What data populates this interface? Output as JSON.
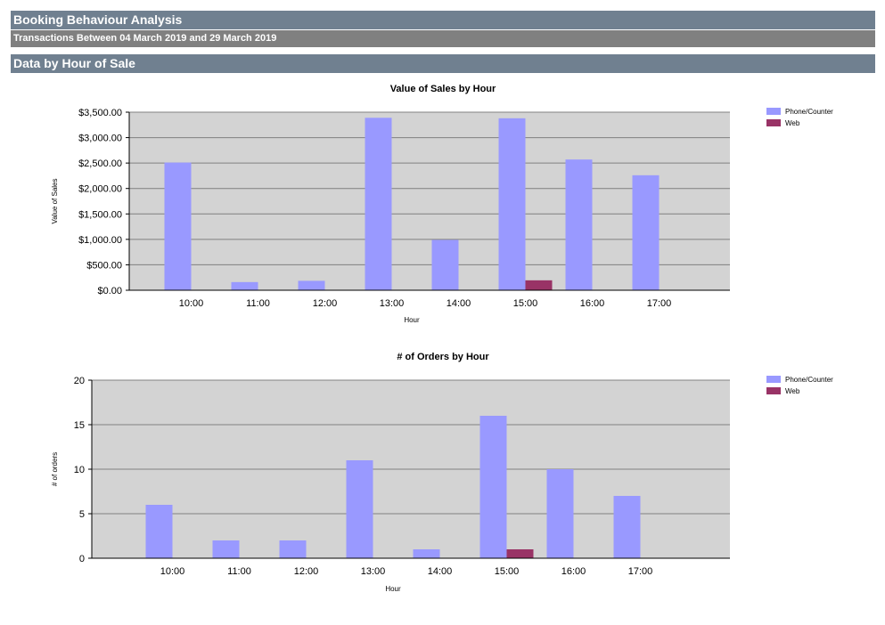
{
  "header": {
    "title": "Booking Behaviour Analysis",
    "subtitle": "Transactions Between 04 March 2019 and 29 March 2019",
    "section": "Data by Hour of Sale"
  },
  "colors": {
    "phone_counter": "#9999ff",
    "web": "#993366",
    "plot_bg": "#d3d3d3",
    "header_bg": "#708090",
    "subheader_bg": "#808080"
  },
  "chart_data": [
    {
      "type": "bar",
      "title": "Value of Sales by Hour",
      "xlabel": "Hour",
      "ylabel": "Value of Sales",
      "categories": [
        "10:00",
        "11:00",
        "12:00",
        "13:00",
        "14:00",
        "15:00",
        "16:00",
        "17:00"
      ],
      "series": [
        {
          "name": "Phone/Counter",
          "values": [
            2510,
            160,
            185,
            3390,
            990,
            3380,
            2570,
            2260
          ]
        },
        {
          "name": "Web",
          "values": [
            0,
            0,
            0,
            0,
            0,
            195,
            0,
            0
          ]
        }
      ],
      "ylim": [
        0,
        3500
      ],
      "yticks": [
        0,
        500,
        1000,
        1500,
        2000,
        2500,
        3000,
        3500
      ],
      "ytick_labels": [
        "$0.00",
        "$500.00",
        "$1,000.00",
        "$1,500.00",
        "$2,000.00",
        "$2,500.00",
        "$3,000.00",
        "$3,500.00"
      ],
      "legend": "right",
      "grid": true
    },
    {
      "type": "bar",
      "title": "# of Orders by Hour",
      "xlabel": "Hour",
      "ylabel": "# of orders",
      "categories": [
        "10:00",
        "11:00",
        "12:00",
        "13:00",
        "14:00",
        "15:00",
        "16:00",
        "17:00"
      ],
      "series": [
        {
          "name": "Phone/Counter",
          "values": [
            6,
            2,
            2,
            11,
            1,
            16,
            10,
            7
          ]
        },
        {
          "name": "Web",
          "values": [
            0,
            0,
            0,
            0,
            0,
            1,
            0,
            0
          ]
        }
      ],
      "ylim": [
        0,
        20
      ],
      "yticks": [
        0,
        5,
        10,
        15,
        20
      ],
      "ytick_labels": [
        "0",
        "5",
        "10",
        "15",
        "20"
      ],
      "legend": "right",
      "grid": true
    }
  ]
}
